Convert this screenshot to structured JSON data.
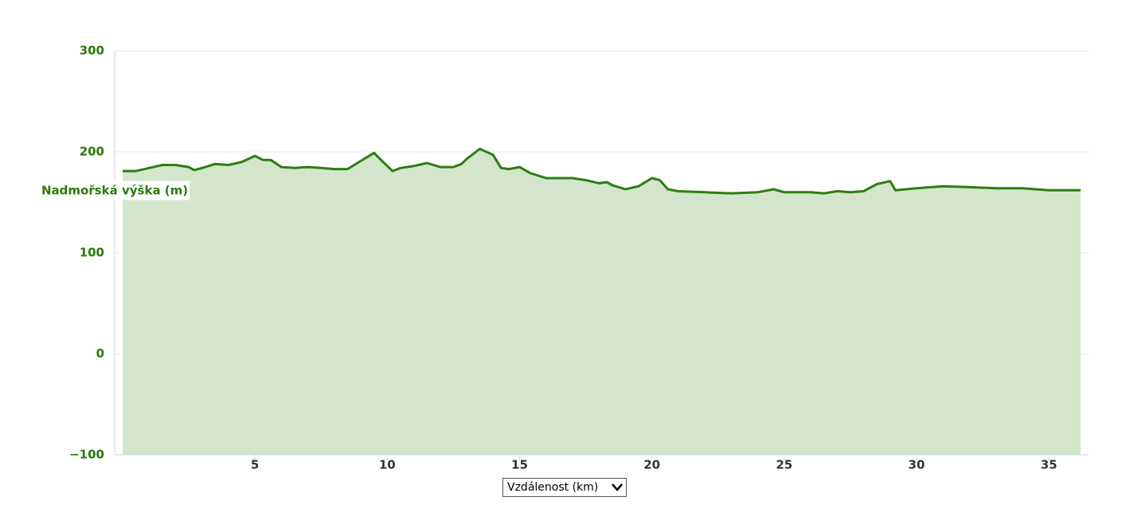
{
  "chart_data": {
    "type": "area",
    "y_label": "Nadmořská výška (m)",
    "x_label": "Vzdálenost (km)",
    "color": "#2e7d12",
    "fill": "#d3e6cc",
    "x": [
      0,
      0.5,
      1,
      1.5,
      2,
      2.5,
      2.7,
      3,
      3.5,
      4,
      4.5,
      5,
      5.3,
      5.6,
      6,
      6.5,
      7,
      7.5,
      8,
      8.5,
      9,
      9.5,
      9.8,
      10.2,
      10.5,
      11,
      11.5,
      12,
      12.5,
      12.8,
      13,
      13.5,
      14,
      14.3,
      14.6,
      15,
      15.4,
      16,
      16.5,
      17,
      17.5,
      18,
      18.3,
      18.5,
      19,
      19.5,
      20,
      20.3,
      20.6,
      21,
      22,
      23,
      24,
      24.6,
      25,
      26,
      26.5,
      27,
      27.5,
      28,
      28.5,
      29,
      29.2,
      30,
      31,
      32,
      33,
      34,
      35,
      36.2
    ],
    "values": [
      181,
      181,
      184,
      187,
      187,
      185,
      182,
      184,
      188,
      187,
      190,
      196,
      192,
      192,
      185,
      184,
      185,
      184,
      183,
      183,
      191,
      199,
      191,
      181,
      184,
      186,
      189,
      185,
      185,
      188,
      193,
      203,
      197,
      184,
      183,
      185,
      179,
      174,
      174,
      174,
      172,
      169,
      170,
      167,
      163,
      166,
      174,
      172,
      163,
      161,
      160,
      159,
      160,
      163,
      160,
      160,
      159,
      161,
      160,
      161,
      168,
      171,
      162,
      164,
      166,
      165,
      164,
      164,
      162,
      162
    ],
    "xlim": [
      -0.3,
      36.5
    ],
    "xticks": [
      5,
      10,
      15,
      20,
      25,
      30,
      35
    ],
    "ylim": [
      -100,
      300
    ],
    "yticks": [
      {
        "value": -100,
        "label": "−100"
      },
      0,
      100,
      200,
      300
    ],
    "grid": true
  }
}
